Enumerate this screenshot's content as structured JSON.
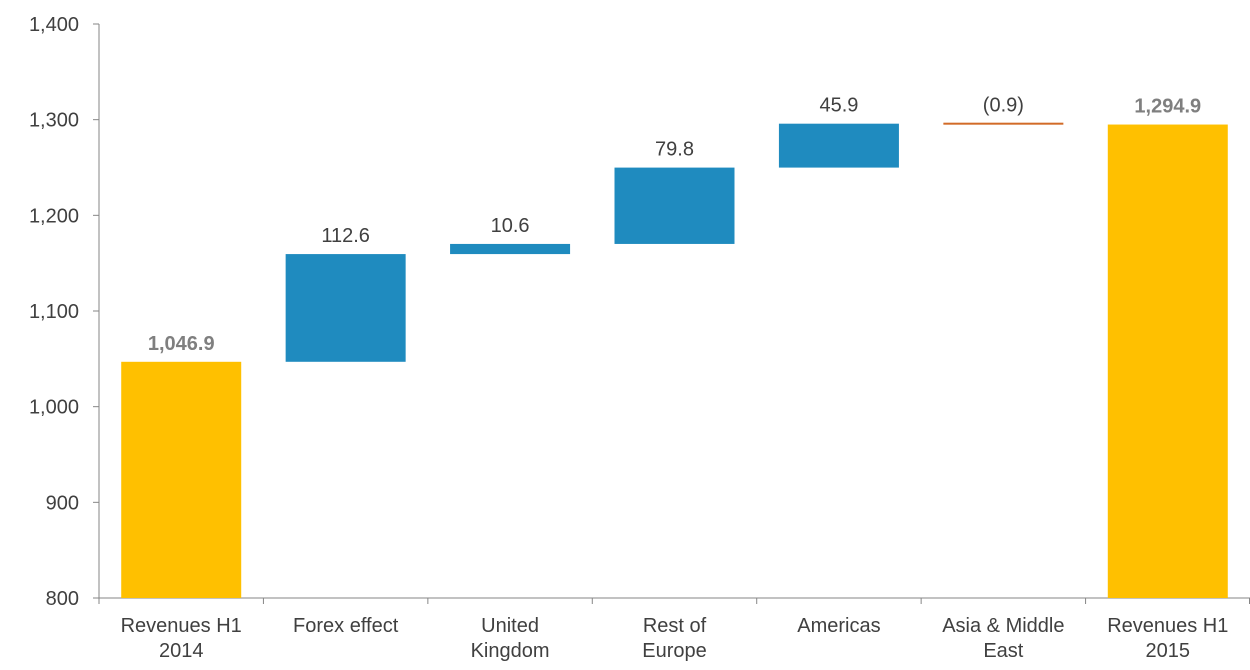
{
  "chart_data": {
    "type": "waterfall",
    "categories": [
      [
        "Revenues H1",
        "2014"
      ],
      [
        "Forex effect"
      ],
      [
        "United",
        "Kingdom"
      ],
      [
        "Rest of",
        "Europe"
      ],
      [
        "Americas"
      ],
      [
        "Asia & Middle",
        "East"
      ],
      [
        "Revenues H1",
        "2015"
      ]
    ],
    "bars": [
      {
        "kind": "total",
        "start": 800,
        "end": 1046.9,
        "label": "1,046.9"
      },
      {
        "kind": "increase",
        "start": 1046.9,
        "end": 1159.5,
        "label": "112.6"
      },
      {
        "kind": "increase",
        "start": 1159.5,
        "end": 1170.1,
        "label": "10.6"
      },
      {
        "kind": "increase",
        "start": 1170.1,
        "end": 1249.9,
        "label": "79.8"
      },
      {
        "kind": "increase",
        "start": 1249.9,
        "end": 1295.8,
        "label": "45.9"
      },
      {
        "kind": "decrease",
        "start": 1295.8,
        "end": 1294.9,
        "label": "(0.9)"
      },
      {
        "kind": "total",
        "start": 800,
        "end": 1294.9,
        "label": "1,294.9"
      }
    ],
    "yticks": [
      "800",
      "900",
      "1,000",
      "1,100",
      "1,200",
      "1,300",
      "1,400"
    ],
    "ylim": [
      800,
      1400
    ],
    "grid": false,
    "legend": "none",
    "colors": {
      "total": "#FFC000",
      "increase": "#1F8BBF",
      "decrease": "#D26B28",
      "axis": "#868686",
      "text": "#404040",
      "total_label": "#7F7F7F"
    }
  }
}
